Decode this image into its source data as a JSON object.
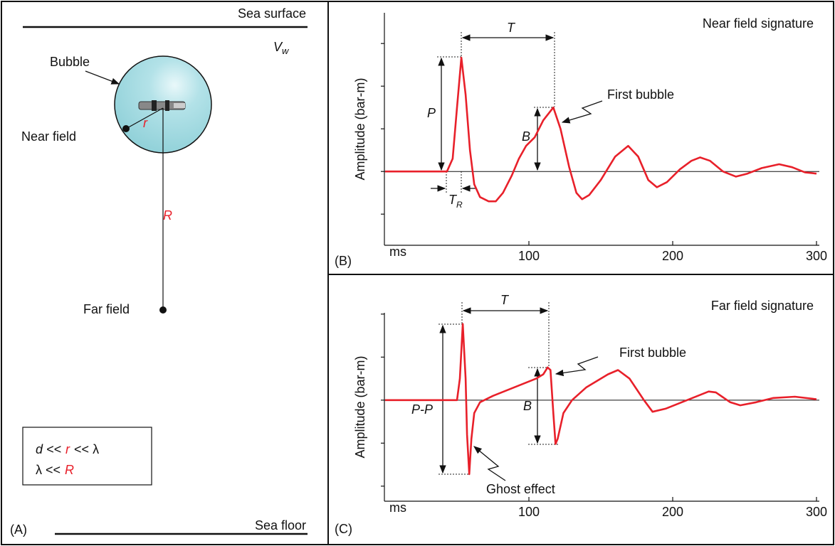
{
  "diagram": {
    "panel": "(A)",
    "sea_surface": "Sea surface",
    "velocity": "V",
    "velocity_sub": "w",
    "bubble": "Bubble",
    "near_field": "Near field",
    "near_radius": "r",
    "far_distance": "R",
    "far_field": "Far field",
    "condition_1": [
      "d <<",
      "r",
      "<< λ"
    ],
    "condition_2": [
      "λ <<",
      "R"
    ],
    "sea_floor": "Sea floor"
  },
  "chart_data": [
    {
      "type": "line",
      "title": "Near field signature",
      "panel": "(B)",
      "xlabel": "ms",
      "ylabel": "Amplitude (bar-m)",
      "color": "#e8202a",
      "annotations": {
        "period": "T",
        "peak": "P",
        "bubble": "B",
        "rise": "T",
        "rise_sub": "R",
        "first_bubble": "First bubble"
      },
      "x": [
        0,
        43,
        47,
        50,
        53,
        56,
        59,
        62,
        66,
        72,
        77,
        82,
        88,
        93,
        98,
        104,
        110,
        117,
        122,
        128,
        133,
        137,
        142,
        150,
        160,
        169,
        176,
        183,
        189,
        196,
        205,
        213,
        219,
        226,
        235,
        244,
        252,
        262,
        274,
        283,
        292,
        300
      ],
      "values": [
        0,
        0,
        0.3,
        1.5,
        2.67,
        1.8,
        0.5,
        -0.3,
        -0.6,
        -0.7,
        -0.7,
        -0.5,
        -0.1,
        0.3,
        0.6,
        0.8,
        1.2,
        1.5,
        1.0,
        0.1,
        -0.5,
        -0.65,
        -0.55,
        -0.2,
        0.35,
        0.6,
        0.35,
        -0.2,
        -0.37,
        -0.25,
        0.05,
        0.25,
        0.33,
        0.25,
        0.0,
        -0.12,
        -0.05,
        0.08,
        0.17,
        0.1,
        -0.02,
        -0.05
      ],
      "xlim": [
        0,
        300
      ],
      "xticks": [
        100,
        200,
        300
      ],
      "ylim": [
        -1.73,
        3.72
      ],
      "yticks": [
        -1,
        0,
        1,
        2,
        3
      ]
    },
    {
      "type": "line",
      "title": "Far field signature",
      "panel": "(C)",
      "xlabel": "ms",
      "ylabel": "Amplitude (bar-m)",
      "color": "#e8202a",
      "annotations": {
        "period": "T",
        "peak": "P-P",
        "bubble": "B",
        "first_bubble": "First bubble",
        "ghost": "Ghost effect"
      },
      "x": [
        0,
        50,
        52,
        54,
        56,
        57,
        58.5,
        60,
        62,
        66,
        75,
        90,
        105,
        110,
        113,
        115,
        117,
        118.5,
        120,
        124,
        130,
        140,
        155,
        162,
        170,
        180,
        186,
        195,
        210,
        225,
        230,
        240,
        247,
        258,
        270,
        285,
        300
      ],
      "values": [
        0,
        0,
        0.5,
        1.77,
        0.5,
        -0.8,
        -1.72,
        -0.9,
        -0.3,
        -0.05,
        0.1,
        0.3,
        0.5,
        0.6,
        0.76,
        0.7,
        -0.3,
        -1.02,
        -0.9,
        -0.3,
        0.0,
        0.3,
        0.6,
        0.7,
        0.5,
        0.0,
        -0.27,
        -0.2,
        0.0,
        0.2,
        0.18,
        -0.05,
        -0.12,
        -0.05,
        0.05,
        0.08,
        0.02
      ],
      "xlim": [
        0,
        300
      ],
      "xticks": [
        100,
        200,
        300
      ],
      "ylim": [
        -2.35,
        2.03
      ],
      "yticks": [
        -2,
        -1,
        0,
        1,
        2
      ]
    }
  ]
}
